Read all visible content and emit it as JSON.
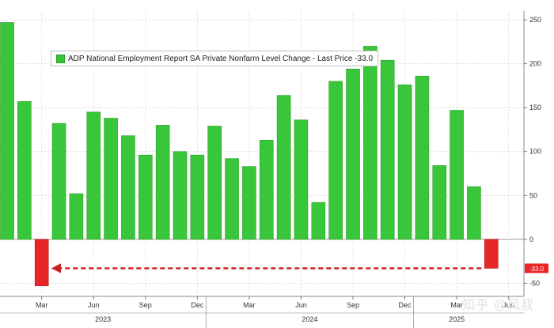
{
  "legend": {
    "label": "ADP National Employment Report SA Private Nonfarm Level Change - Last Price",
    "last_price": "-33.0"
  },
  "last_value_tag": "-33.0",
  "watermark": "知乎 @风叔",
  "colors": {
    "positive": "#39c63a",
    "negative": "#e8262a",
    "arrow": "#cc2020"
  },
  "chart_data": {
    "type": "bar",
    "x": [
      "2023-01",
      "2023-02",
      "2023-03",
      "2023-04",
      "2023-05",
      "2023-06",
      "2023-07",
      "2023-08",
      "2023-09",
      "2023-10",
      "2023-11",
      "2023-12",
      "2024-01",
      "2024-02",
      "2024-03",
      "2024-04",
      "2024-05",
      "2024-06",
      "2024-07",
      "2024-08",
      "2024-09",
      "2024-10",
      "2024-11",
      "2024-12",
      "2025-01",
      "2025-02",
      "2025-03",
      "2025-04",
      "2025-05"
    ],
    "values": [
      247,
      157,
      -53,
      132,
      52,
      145,
      138,
      118,
      96,
      130,
      100,
      96,
      129,
      92,
      83,
      113,
      164,
      136,
      42,
      180,
      194,
      220,
      204,
      176,
      186,
      84,
      147,
      60,
      -33
    ],
    "series": [
      {
        "name": "ADP National Employment Report SA Private Nonfarm Level Change",
        "values": [
          247,
          157,
          -53,
          132,
          52,
          145,
          138,
          118,
          96,
          130,
          100,
          96,
          129,
          92,
          83,
          113,
          164,
          136,
          42,
          180,
          194,
          220,
          204,
          176,
          186,
          84,
          147,
          60,
          -33
        ]
      }
    ],
    "ylim": [
      -65,
      260
    ],
    "yticks": [
      -50,
      0,
      50,
      100,
      150,
      200,
      250
    ],
    "month_ticks": [
      {
        "label": "Mar",
        "index": 2
      },
      {
        "label": "Jun",
        "index": 5
      },
      {
        "label": "Sep",
        "index": 8
      },
      {
        "label": "Dec",
        "index": 11
      },
      {
        "label": "Mar",
        "index": 14
      },
      {
        "label": "Jun",
        "index": 17
      },
      {
        "label": "Sep",
        "index": 20
      },
      {
        "label": "Dec",
        "index": 23
      },
      {
        "label": "Mar",
        "index": 26
      },
      {
        "label": "Jun",
        "index": 29
      }
    ],
    "year_labels": [
      {
        "label": "2023",
        "start": 0,
        "end": 12
      },
      {
        "label": "2024",
        "start": 12,
        "end": 24
      },
      {
        "label": "2025",
        "start": 24,
        "end": 29
      }
    ],
    "arrow": {
      "from_index": 28,
      "to_index": 2,
      "value": -33
    },
    "grid": true,
    "legend_position": "top-left"
  }
}
